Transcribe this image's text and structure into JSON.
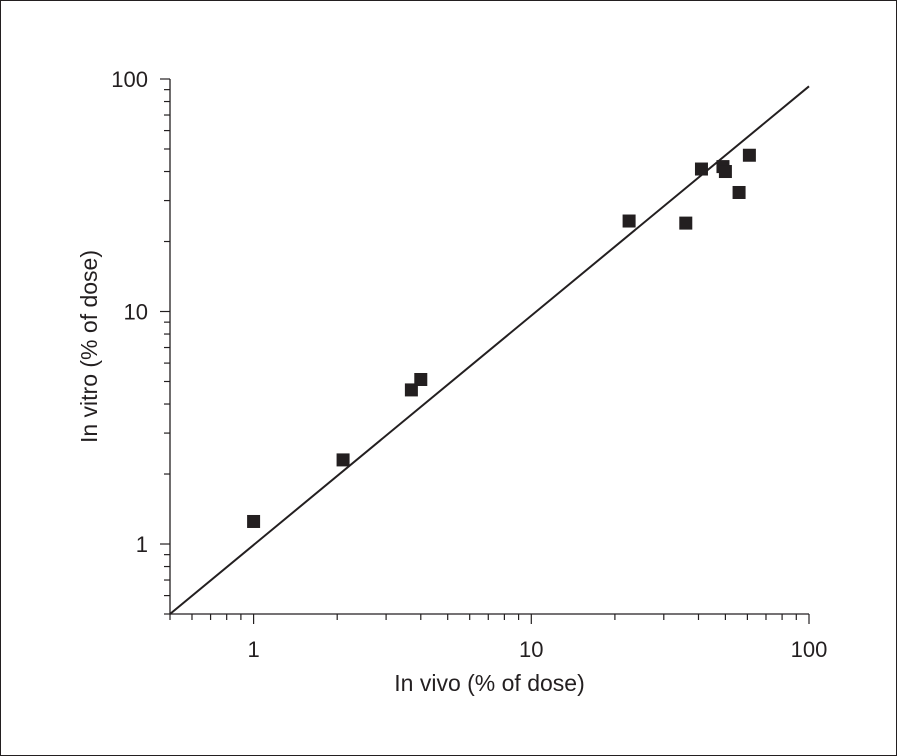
{
  "chart_data": {
    "type": "scatter",
    "title": "",
    "xlabel": "In vivo (% of dose)",
    "ylabel": "In vitro (% of dose)",
    "xscale": "log",
    "yscale": "log",
    "xlim": [
      0.5,
      100
    ],
    "ylim": [
      0.5,
      100
    ],
    "x_tick_labels": [
      "1",
      "10",
      "100"
    ],
    "y_tick_labels": [
      "1",
      "10",
      "100"
    ],
    "grid": false,
    "legend": "none",
    "series": [
      {
        "marker": "square",
        "color": "#231f20",
        "points": [
          {
            "x": 1.0,
            "y": 1.25
          },
          {
            "x": 2.1,
            "y": 2.3
          },
          {
            "x": 3.7,
            "y": 4.6
          },
          {
            "x": 4.0,
            "y": 5.1
          },
          {
            "x": 22.5,
            "y": 24.5
          },
          {
            "x": 36,
            "y": 24
          },
          {
            "x": 41,
            "y": 41
          },
          {
            "x": 49,
            "y": 42
          },
          {
            "x": 50,
            "y": 40
          },
          {
            "x": 56,
            "y": 32.5
          },
          {
            "x": 61,
            "y": 47
          }
        ]
      }
    ],
    "reference_line": {
      "type": "line",
      "color": "#231f20",
      "points": [
        {
          "x": 0.5,
          "y": 0.5
        },
        {
          "x": 100,
          "y": 93
        }
      ]
    }
  }
}
